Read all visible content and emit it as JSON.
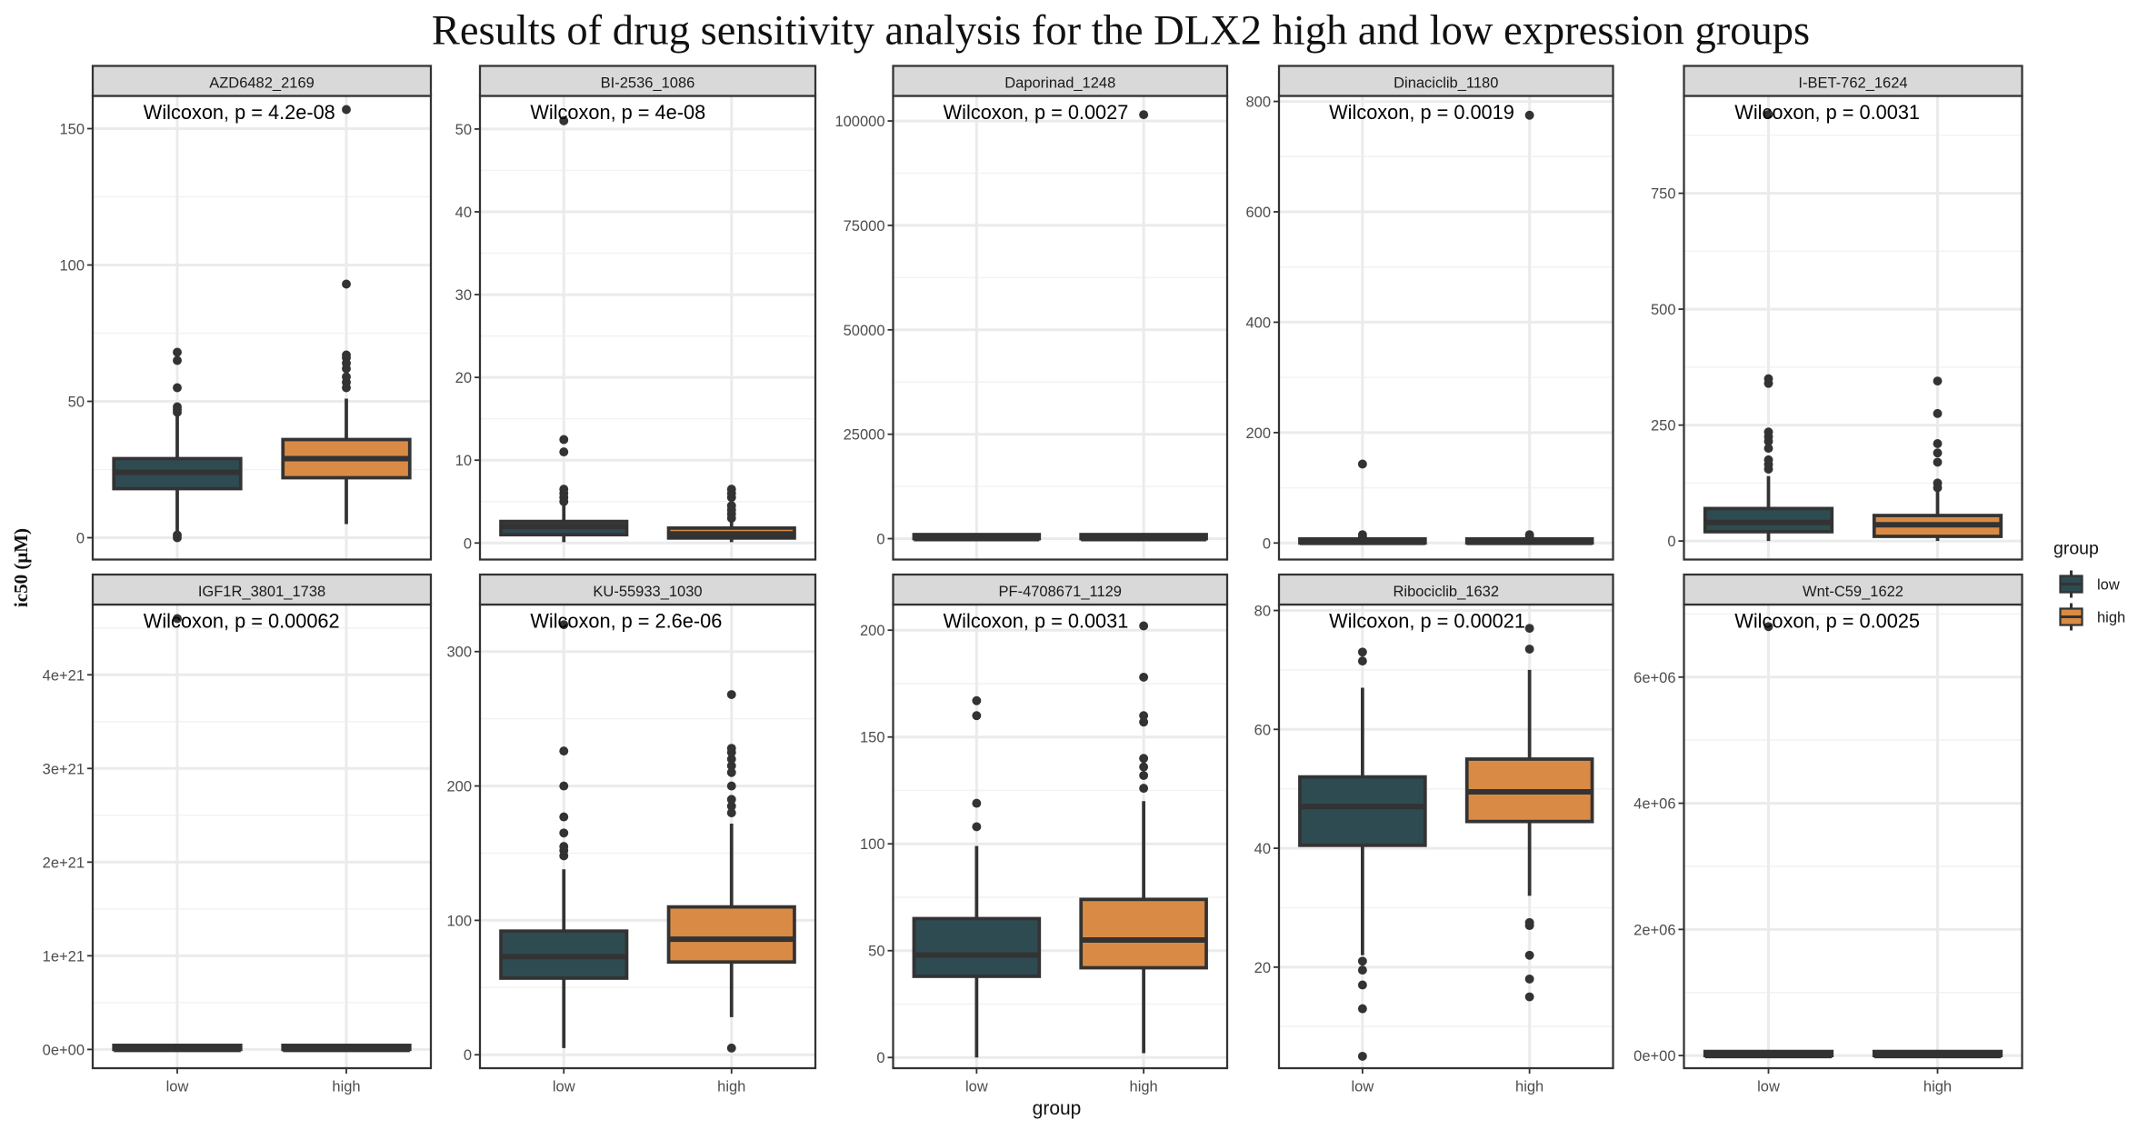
{
  "chart_data": {
    "type": "boxplot",
    "title": "Results of drug sensitivity analysis for the DLX2 high and low expression groups",
    "xlabel": "group",
    "ylabel": "ic50 (μM)",
    "categories": [
      "low",
      "high"
    ],
    "legend": {
      "title": "group",
      "placement": "right",
      "entries": [
        {
          "label": "low",
          "color": "#2f4b52"
        },
        {
          "label": "high",
          "color": "#d98b45"
        }
      ]
    },
    "grid": true,
    "panels": [
      {
        "name": "AZD6482_2169",
        "annotation": "Wilcoxon, p = 4.2e-08",
        "ylim": [
          -8,
          162
        ],
        "ticks": [
          0,
          50,
          100,
          150
        ],
        "tick_labels": [
          "0",
          "50",
          "100",
          "150"
        ],
        "boxes": [
          {
            "group": "low",
            "q1": 18,
            "median": 24,
            "q3": 29,
            "whisker_low": 1,
            "whisker_high": 45,
            "outliers": [
              0,
              1,
              46,
              47,
              48,
              55,
              65,
              68
            ]
          },
          {
            "group": "high",
            "q1": 22,
            "median": 29,
            "q3": 36,
            "whisker_low": 5,
            "whisker_high": 51,
            "outliers": [
              55,
              57,
              59,
              62,
              64,
              66,
              67,
              93,
              157
            ]
          }
        ]
      },
      {
        "name": "BI-2536_1086",
        "annotation": "Wilcoxon, p = 4e-08",
        "ylim": [
          -2,
          54
        ],
        "ticks": [
          0,
          10,
          20,
          30,
          40,
          50
        ],
        "tick_labels": [
          "0",
          "10",
          "20",
          "30",
          "40",
          "50"
        ],
        "boxes": [
          {
            "group": "low",
            "q1": 1,
            "median": 2,
            "q3": 2.6,
            "whisker_low": 0.1,
            "whisker_high": 4.5,
            "outliers": [
              5,
              5.5,
              6,
              6.5,
              11,
              12.5,
              51
            ]
          },
          {
            "group": "high",
            "q1": 0.6,
            "median": 1.1,
            "q3": 1.8,
            "whisker_low": 0.1,
            "whisker_high": 3,
            "outliers": [
              3,
              3.5,
              4,
              4.5,
              5.5,
              6,
              6.5
            ]
          }
        ]
      },
      {
        "name": "Daporinad_1248",
        "annotation": "Wilcoxon, p = 0.0027",
        "ylim": [
          -5000,
          106000
        ],
        "ticks": [
          0,
          25000,
          50000,
          75000,
          100000
        ],
        "tick_labels": [
          "0",
          "25000",
          "50000",
          "75000",
          "100000"
        ],
        "boxes": [
          {
            "group": "low",
            "q1": 0,
            "median": 10,
            "q3": 20,
            "whisker_low": 0,
            "whisker_high": 60,
            "outliers": []
          },
          {
            "group": "high",
            "q1": 0,
            "median": 10,
            "q3": 20,
            "whisker_low": 0,
            "whisker_high": 60,
            "outliers": [
              101500
            ]
          }
        ]
      },
      {
        "name": "Dinaciclib_1180",
        "annotation": "Wilcoxon, p = 0.0019",
        "ylim": [
          -30,
          810
        ],
        "ticks": [
          0,
          200,
          400,
          600,
          800
        ],
        "tick_labels": [
          "0",
          "200",
          "400",
          "600",
          "800"
        ],
        "boxes": [
          {
            "group": "low",
            "q1": 0,
            "median": 1,
            "q3": 3,
            "whisker_low": 0,
            "whisker_high": 6,
            "outliers": [
              10,
              15,
              143
            ]
          },
          {
            "group": "high",
            "q1": 0,
            "median": 1,
            "q3": 3,
            "whisker_low": 0,
            "whisker_high": 6,
            "outliers": [
              10,
              15,
              775
            ]
          }
        ]
      },
      {
        "name": "I-BET-762_1624",
        "annotation": "Wilcoxon, p = 0.0031",
        "ylim": [
          -40,
          960
        ],
        "ticks": [
          0,
          250,
          500,
          750
        ],
        "tick_labels": [
          "0",
          "250",
          "500",
          "750"
        ],
        "boxes": [
          {
            "group": "low",
            "q1": 20,
            "median": 40,
            "q3": 70,
            "whisker_low": 0,
            "whisker_high": 140,
            "outliers": [
              155,
              165,
              175,
              200,
              215,
              225,
              235,
              340,
              350,
              920
            ]
          },
          {
            "group": "high",
            "q1": 10,
            "median": 35,
            "q3": 55,
            "whisker_low": 0,
            "whisker_high": 110,
            "outliers": [
              115,
              125,
              170,
              190,
              210,
              275,
              345
            ]
          }
        ]
      },
      {
        "name": "IGF1R_3801_1738",
        "annotation": "Wilcoxon, p = 0.00062",
        "ylim": [
          -2e+20,
          4.75e+21
        ],
        "ticks": [
          0,
          1e+21,
          2e+21,
          3e+21,
          4e+21
        ],
        "tick_labels": [
          "0e+00",
          "1e+21",
          "2e+21",
          "3e+21",
          "4e+21"
        ],
        "boxes": [
          {
            "group": "low",
            "q1": 0,
            "median": 0,
            "q3": 1e+19,
            "whisker_low": 0,
            "whisker_high": 2e+19,
            "outliers": [
              4.6e+21
            ]
          },
          {
            "group": "high",
            "q1": 0,
            "median": 0,
            "q3": 1e+19,
            "whisker_low": 0,
            "whisker_high": 2e+19,
            "outliers": []
          }
        ]
      },
      {
        "name": "KU-55933_1030",
        "annotation": "Wilcoxon, p = 2.6e-06",
        "ylim": [
          -10,
          335
        ],
        "ticks": [
          0,
          100,
          200,
          300
        ],
        "tick_labels": [
          "0",
          "100",
          "200",
          "300"
        ],
        "boxes": [
          {
            "group": "low",
            "q1": 57,
            "median": 73,
            "q3": 92,
            "whisker_low": 5,
            "whisker_high": 138,
            "outliers": [
              148,
              152,
              155,
              165,
              177,
              200,
              226,
              320
            ]
          },
          {
            "group": "high",
            "q1": 69,
            "median": 86,
            "q3": 110,
            "whisker_low": 28,
            "whisker_high": 172,
            "outliers": [
              5,
              180,
              185,
              190,
              200,
              210,
              215,
              220,
              225,
              228,
              268
            ]
          }
        ]
      },
      {
        "name": "PF-4708671_1129",
        "annotation": "Wilcoxon, p = 0.0031",
        "ylim": [
          -5,
          212
        ],
        "ticks": [
          0,
          50,
          100,
          150,
          200
        ],
        "tick_labels": [
          "0",
          "50",
          "100",
          "150",
          "200"
        ],
        "boxes": [
          {
            "group": "low",
            "q1": 38,
            "median": 48,
            "q3": 65,
            "whisker_low": 0,
            "whisker_high": 99,
            "outliers": [
              108,
              119,
              160,
              167
            ]
          },
          {
            "group": "high",
            "q1": 42,
            "median": 55,
            "q3": 74,
            "whisker_low": 2,
            "whisker_high": 120,
            "outliers": [
              126,
              132,
              136,
              140,
              157,
              160,
              178,
              202
            ]
          }
        ]
      },
      {
        "name": "Ribociclib_1632",
        "annotation": "Wilcoxon, p = 0.00021",
        "ylim": [
          3,
          81
        ],
        "ticks": [
          20,
          40,
          60,
          80
        ],
        "tick_labels": [
          "20",
          "40",
          "60",
          "80"
        ],
        "boxes": [
          {
            "group": "low",
            "q1": 40.5,
            "median": 47,
            "q3": 52,
            "whisker_low": 22,
            "whisker_high": 67,
            "outliers": [
              5,
              13,
              17,
              19.5,
              21,
              71.5,
              73
            ]
          },
          {
            "group": "high",
            "q1": 44.5,
            "median": 49.5,
            "q3": 55,
            "whisker_low": 32,
            "whisker_high": 70,
            "outliers": [
              15,
              18,
              22,
              27,
              27.5,
              73.5,
              77
            ]
          }
        ]
      },
      {
        "name": "Wnt-C59_1622",
        "annotation": "Wilcoxon, p = 0.0025",
        "ylim": [
          -200000.0,
          7150000.0
        ],
        "ticks": [
          0,
          2000000.0,
          4000000.0,
          6000000.0
        ],
        "tick_labels": [
          "0e+00",
          "2e+06",
          "4e+06",
          "6e+06"
        ],
        "boxes": [
          {
            "group": "low",
            "q1": 0,
            "median": 0,
            "q3": 10000.0,
            "whisker_low": 0,
            "whisker_high": 20000.0,
            "outliers": [
              6800000.0
            ]
          },
          {
            "group": "high",
            "q1": 0,
            "median": 0,
            "q3": 10000.0,
            "whisker_low": 0,
            "whisker_high": 20000.0,
            "outliers": []
          }
        ]
      }
    ]
  }
}
